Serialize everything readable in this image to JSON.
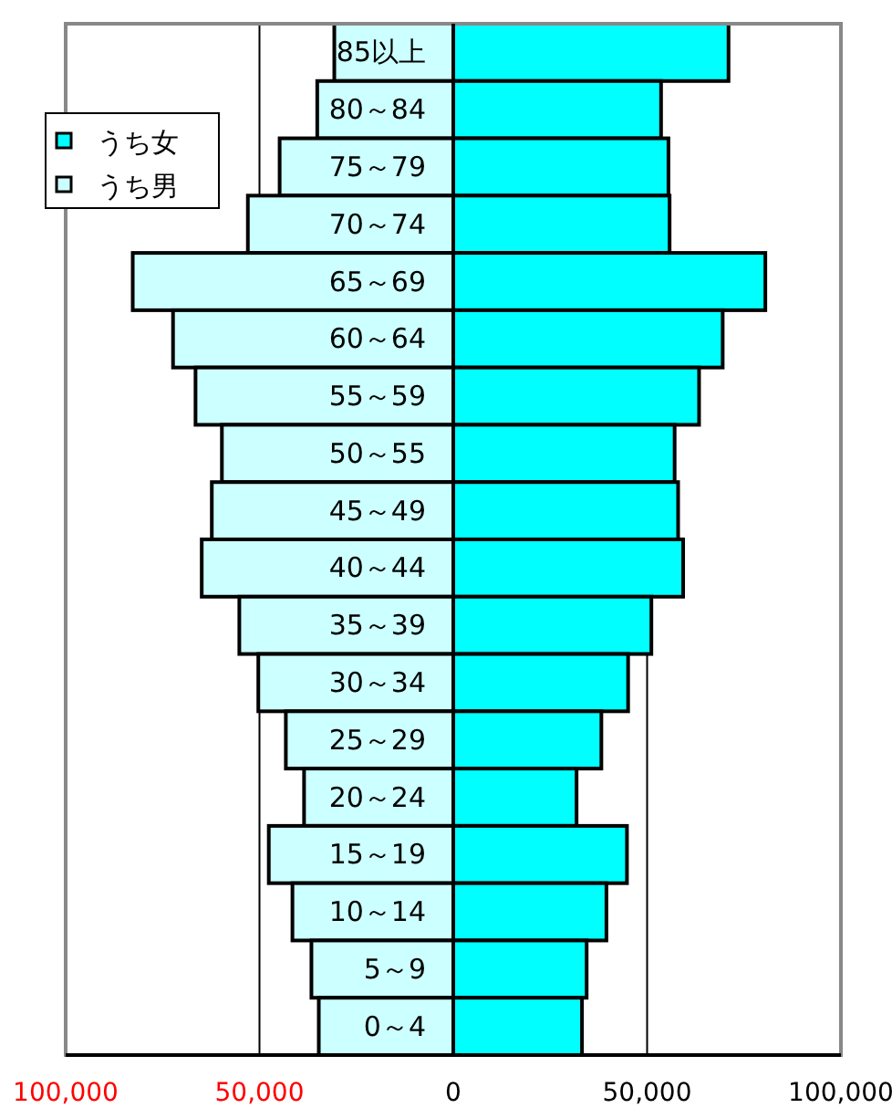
{
  "chart_data": {
    "type": "bar",
    "orientation": "horizontal",
    "categories": [
      "85以上",
      "80～84",
      "75～79",
      "70～74",
      "65～69",
      "60～64",
      "55～59",
      "50～55",
      "45～49",
      "40～44",
      "35～39",
      "30～34",
      "25～29",
      "20～24",
      "15～19",
      "10～14",
      "5～9",
      "0～4"
    ],
    "series": [
      {
        "name": "うち女",
        "color": "#00ffff",
        "values": [
          71000,
          53600,
          55500,
          55800,
          80500,
          69500,
          63400,
          57100,
          58000,
          59300,
          51100,
          45100,
          38200,
          31800,
          44800,
          39500,
          34400,
          33200
        ]
      },
      {
        "name": "うち男",
        "color": "#ccffff",
        "values": [
          -30700,
          -35100,
          -44800,
          -53000,
          -82700,
          -72300,
          -66500,
          -59700,
          -62300,
          -64900,
          -55200,
          -50300,
          -43200,
          -38500,
          -47600,
          -41500,
          -36600,
          -34700
        ]
      }
    ],
    "xlim": [
      -100000,
      100000
    ],
    "xticks": [
      {
        "value": -100000,
        "label": "100,000"
      },
      {
        "value": -50000,
        "label": "50,000"
      },
      0,
      {
        "value": 50000,
        "label": "50,000"
      },
      {
        "value": 100000,
        "label": "100,000"
      }
    ],
    "stacked": true,
    "grid": "x",
    "legend": "top left"
  }
}
